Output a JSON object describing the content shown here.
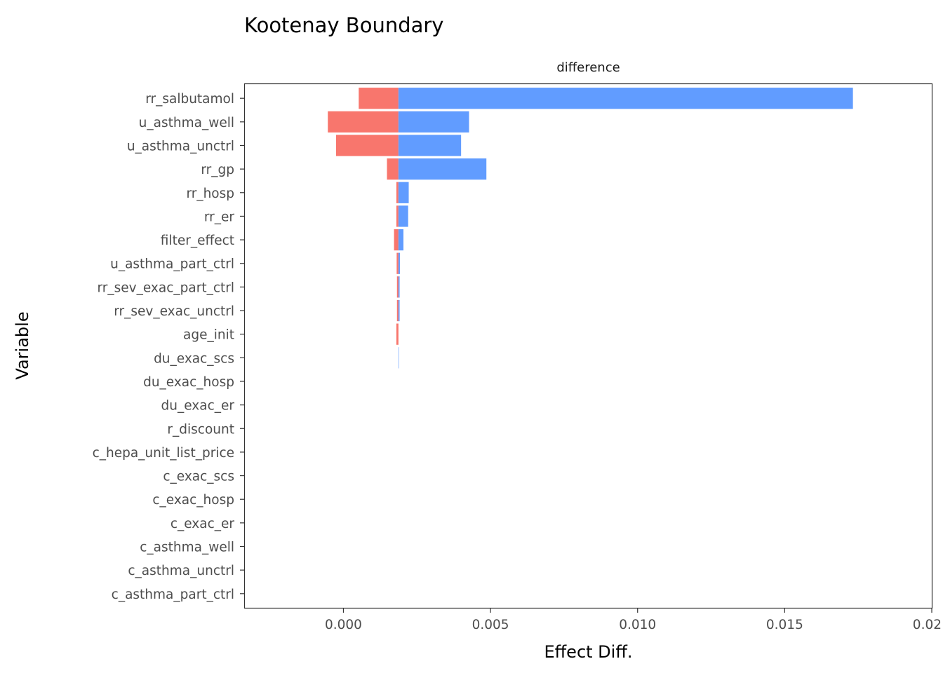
{
  "chart_data": {
    "type": "bar",
    "orientation": "horizontal",
    "title": "Kootenay Boundary",
    "facet_label": "difference",
    "xlabel": "Effect Diff.",
    "ylabel": "Variable",
    "xlim": [
      -0.00335,
      0.02
    ],
    "x_ticks": [
      0.0,
      0.005,
      0.01,
      0.015,
      0.02
    ],
    "x_tick_labels": [
      "0.000",
      "0.005",
      "0.010",
      "0.015",
      "0.02"
    ],
    "baseline": 0.00187,
    "grid": false,
    "legend": "none",
    "colors": {
      "low": "#F8766D",
      "high": "#619CFF"
    },
    "categories": [
      "rr_salbutamol",
      "u_asthma_well",
      "u_asthma_unctrl",
      "rr_gp",
      "rr_hosp",
      "rr_er",
      "filter_effect",
      "u_asthma_part_ctrl",
      "rr_sev_exac_part_ctrl",
      "rr_sev_exac_unctrl",
      "age_init",
      "du_exac_scs",
      "du_exac_hosp",
      "du_exac_er",
      "r_discount",
      "c_hepa_unit_list_price",
      "c_exac_scs",
      "c_exac_hosp",
      "c_exac_er",
      "c_asthma_well",
      "c_asthma_unctrl",
      "c_asthma_part_ctrl"
    ],
    "series": [
      {
        "key": "low",
        "values": [
          0.00052,
          -0.00053,
          -0.00025,
          0.00148,
          0.0018,
          0.0018,
          0.00172,
          0.00181,
          0.00182,
          0.00182,
          0.0018,
          0.00187,
          0.00187,
          0.00187,
          0.00187,
          0.00187,
          0.00187,
          0.00187,
          0.00187,
          0.00187,
          0.00187,
          0.00187
        ]
      },
      {
        "key": "high",
        "values": [
          0.01732,
          0.00427,
          0.004,
          0.00486,
          0.00222,
          0.0022,
          0.00204,
          0.00192,
          0.00191,
          0.00191,
          0.00187,
          0.00188,
          0.00187,
          0.00187,
          0.00187,
          0.00187,
          0.00187,
          0.00187,
          0.00187,
          0.00187,
          0.00187,
          0.00187
        ]
      }
    ]
  }
}
